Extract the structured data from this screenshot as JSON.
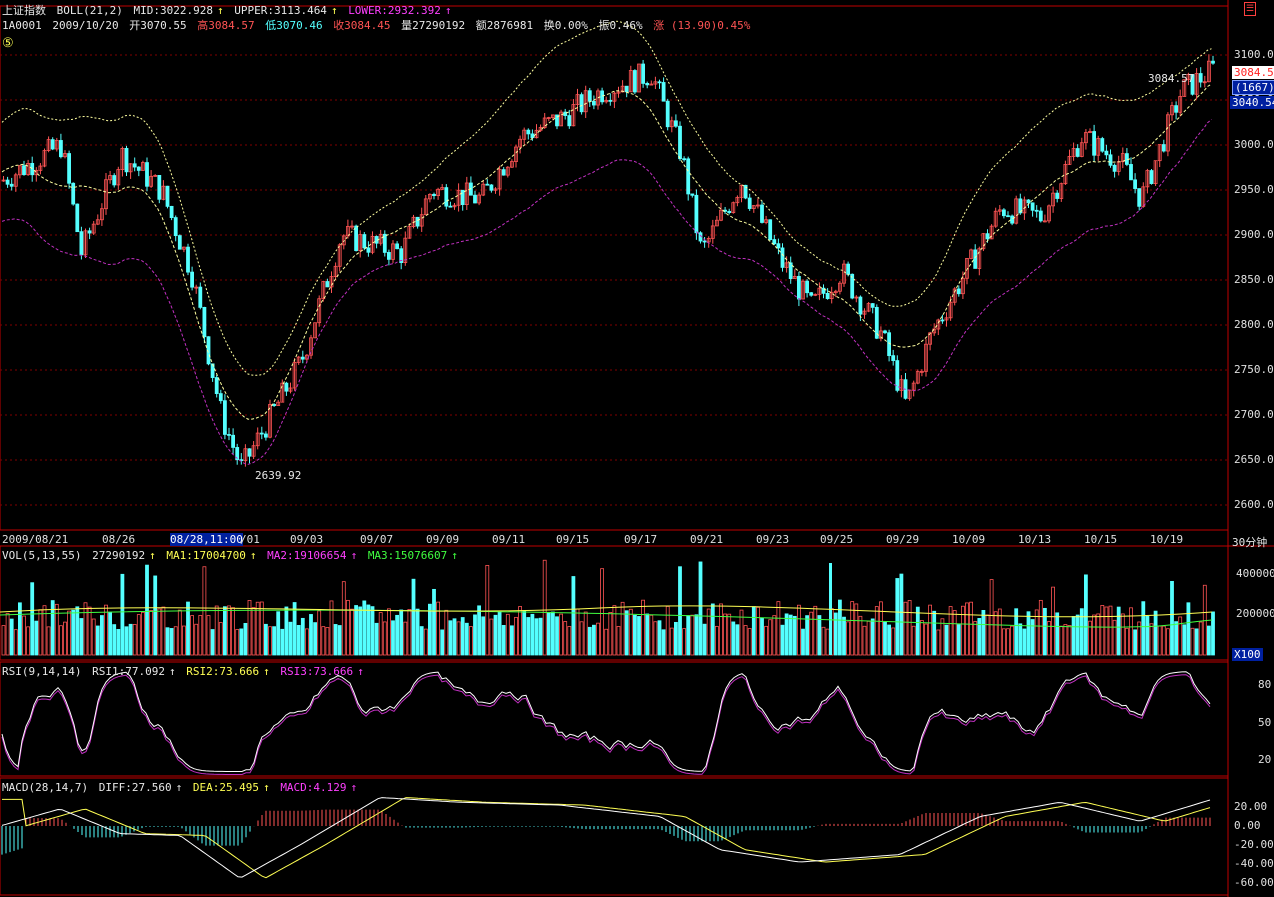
{
  "header": {
    "index_name": "上证指数",
    "indicator": "BOLL(21,2)",
    "mid": "MID:3022.928",
    "upper": "UPPER:3113.464",
    "lower": "LOWER:2932.392",
    "arrow": "↑"
  },
  "quote": {
    "code": "1A0001",
    "date": "2009/10/20",
    "open": "开3070.55",
    "high": "高3084.57",
    "low": "低3070.46",
    "close": "收3084.45",
    "volume": "量27290192",
    "amount": "额2876981",
    "turnover": "换0.00%",
    "amplitude": "振0.46%",
    "change": "涨 (13.90)0.45%"
  },
  "marker": "⑤",
  "main_axis": {
    "ticks": [
      "3100.00",
      "3050.00",
      "3000.00",
      "2950.00",
      "2900.00",
      "2850.00",
      "2800.00",
      "2750.00",
      "2700.00",
      "2650.00",
      "2600.00"
    ],
    "values": [
      3100,
      3050,
      3000,
      2950,
      2900,
      2850,
      2800,
      2750,
      2700,
      2650,
      2600
    ],
    "current_price": "3084.5",
    "count_box": "(1667)",
    "secondary_price": "3040.54"
  },
  "annotations": {
    "high_label": "3084.57",
    "low_label": "2639.92"
  },
  "dates": [
    "2009/08/21",
    "08/26",
    "08/28,11:00",
    "/01",
    "09/03",
    "09/07",
    "09/09",
    "09/11",
    "09/15",
    "09/17",
    "09/21",
    "09/23",
    "09/25",
    "09/29",
    "10/09",
    "10/13",
    "10/15",
    "10/19"
  ],
  "period_label": "30分钟",
  "volume_panel": {
    "indicator": "VOL(5,13,55)",
    "value": "27290192",
    "ma1": "MA1:17004700",
    "ma2": "MA2:19106654",
    "ma3": "MA3:15076607",
    "ticks": [
      "400000",
      "200000"
    ],
    "unit": "X100"
  },
  "rsi_panel": {
    "indicator": "RSI(9,14,14)",
    "rsi1": "RSI1:77.092",
    "rsi2": "RSI2:73.666",
    "rsi3": "RSI3:73.666",
    "ticks": [
      "80",
      "50",
      "20"
    ]
  },
  "macd_panel": {
    "indicator": "MACD(28,14,7)",
    "diff": "DIFF:27.560",
    "dea": "DEA:25.495",
    "macd": "MACD:4.129",
    "ticks": [
      "20.00",
      "0.00",
      "-20.00",
      "-40.00",
      "-60.00"
    ]
  },
  "colors": {
    "up": "#ff5454",
    "down": "#54ffff",
    "mid": "#ffffa0",
    "lower": "#c030c0",
    "grid": "#800000",
    "axis": "#c00000"
  }
}
